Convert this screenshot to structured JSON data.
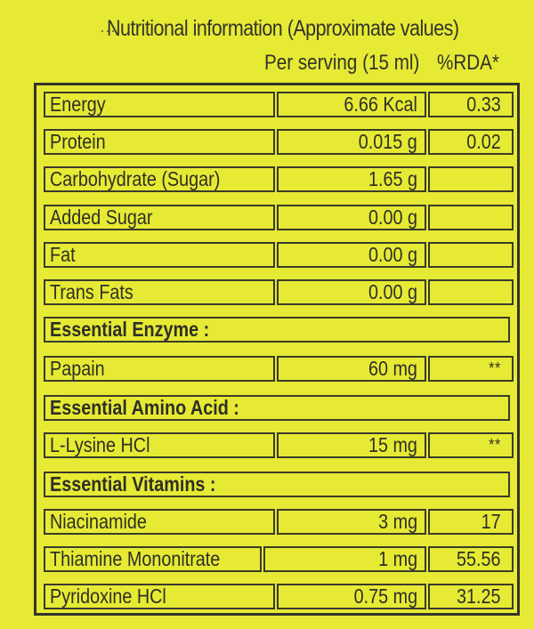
{
  "title": "Nutritional information (Approximate values)",
  "columns": {
    "serving": "Per serving (15 ml)",
    "rda": "%RDA*"
  },
  "rows": [
    {
      "name": "Energy",
      "value": "6.66 Kcal",
      "rda": "0.33"
    },
    {
      "name": "Protein",
      "value": "0.015 g",
      "rda": "0.02"
    },
    {
      "name": "Carbohydrate (Sugar)",
      "value": "1.65 g",
      "rda": ""
    },
    {
      "name": "Added Sugar",
      "value": "0.00 g",
      "rda": ""
    },
    {
      "name": "Fat",
      "value": "0.00 g",
      "rda": ""
    },
    {
      "name": "Trans Fats",
      "value": "0.00 g",
      "rda": ""
    },
    {
      "section": "Essential Enzyme :"
    },
    {
      "name": "Papain",
      "value": "60 mg",
      "rda": "**"
    },
    {
      "section": "Essential Amino Acid :"
    },
    {
      "name": "L-Lysine HCl",
      "value": "15 mg",
      "rda": "**"
    },
    {
      "section": "Essential Vitamins :"
    },
    {
      "name": "Niacinamide",
      "value": "3 mg",
      "rda": "17"
    },
    {
      "name": "Thiamine Mononitrate",
      "value": "1 mg",
      "rda": "55.56"
    },
    {
      "name": "Pyridoxine HCl",
      "value": "0.75 mg",
      "rda": "31.25"
    }
  ],
  "colors": {
    "background": "#e6ea34",
    "text": "#2e2f25",
    "border": "#34352a"
  }
}
